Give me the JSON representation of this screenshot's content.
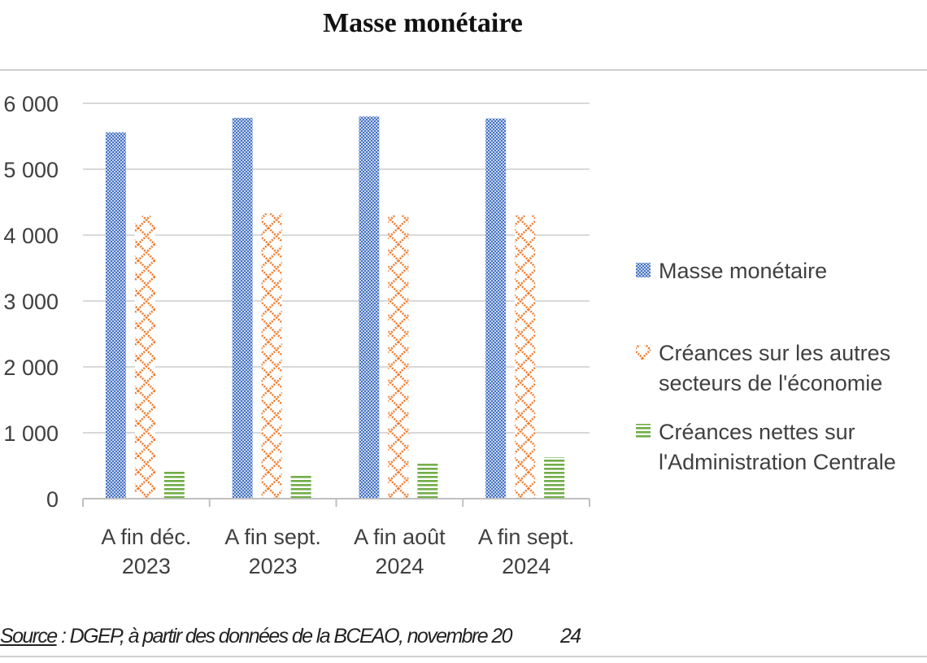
{
  "chart_data": {
    "type": "bar",
    "title": "Masse monétaire",
    "categories": [
      [
        "A fin déc.",
        "2023"
      ],
      [
        "A fin sept.",
        "2023"
      ],
      [
        "A fin août",
        "2024"
      ],
      [
        "A fin sept.",
        "2024"
      ]
    ],
    "series": [
      {
        "name": "Masse monétaire",
        "values": [
          5560,
          5780,
          5800,
          5770
        ],
        "color": "#4472c4",
        "pattern": "checker"
      },
      {
        "name": [
          "Créances sur les autres",
          "secteurs de l'économie"
        ],
        "values": [
          4290,
          4330,
          4300,
          4300
        ],
        "color": "#ed7d31",
        "pattern": "diamond-lattice"
      },
      {
        "name": [
          "Créances nettes sur",
          "l'Administration Centrale"
        ],
        "values": [
          430,
          350,
          530,
          630
        ],
        "color": "#70ad47",
        "pattern": "horizontal-stripes"
      }
    ],
    "yticks": [
      "0",
      "1 000",
      "2 000",
      "3 000",
      "4 000",
      "5 000",
      "6 000"
    ],
    "ylim": [
      0,
      6000
    ],
    "grid": true,
    "legend_position": "right"
  },
  "source": {
    "label": "Source",
    "text": " : DGEP, à partir des données de la BCEAO, novembre 20",
    "tail": "24"
  }
}
